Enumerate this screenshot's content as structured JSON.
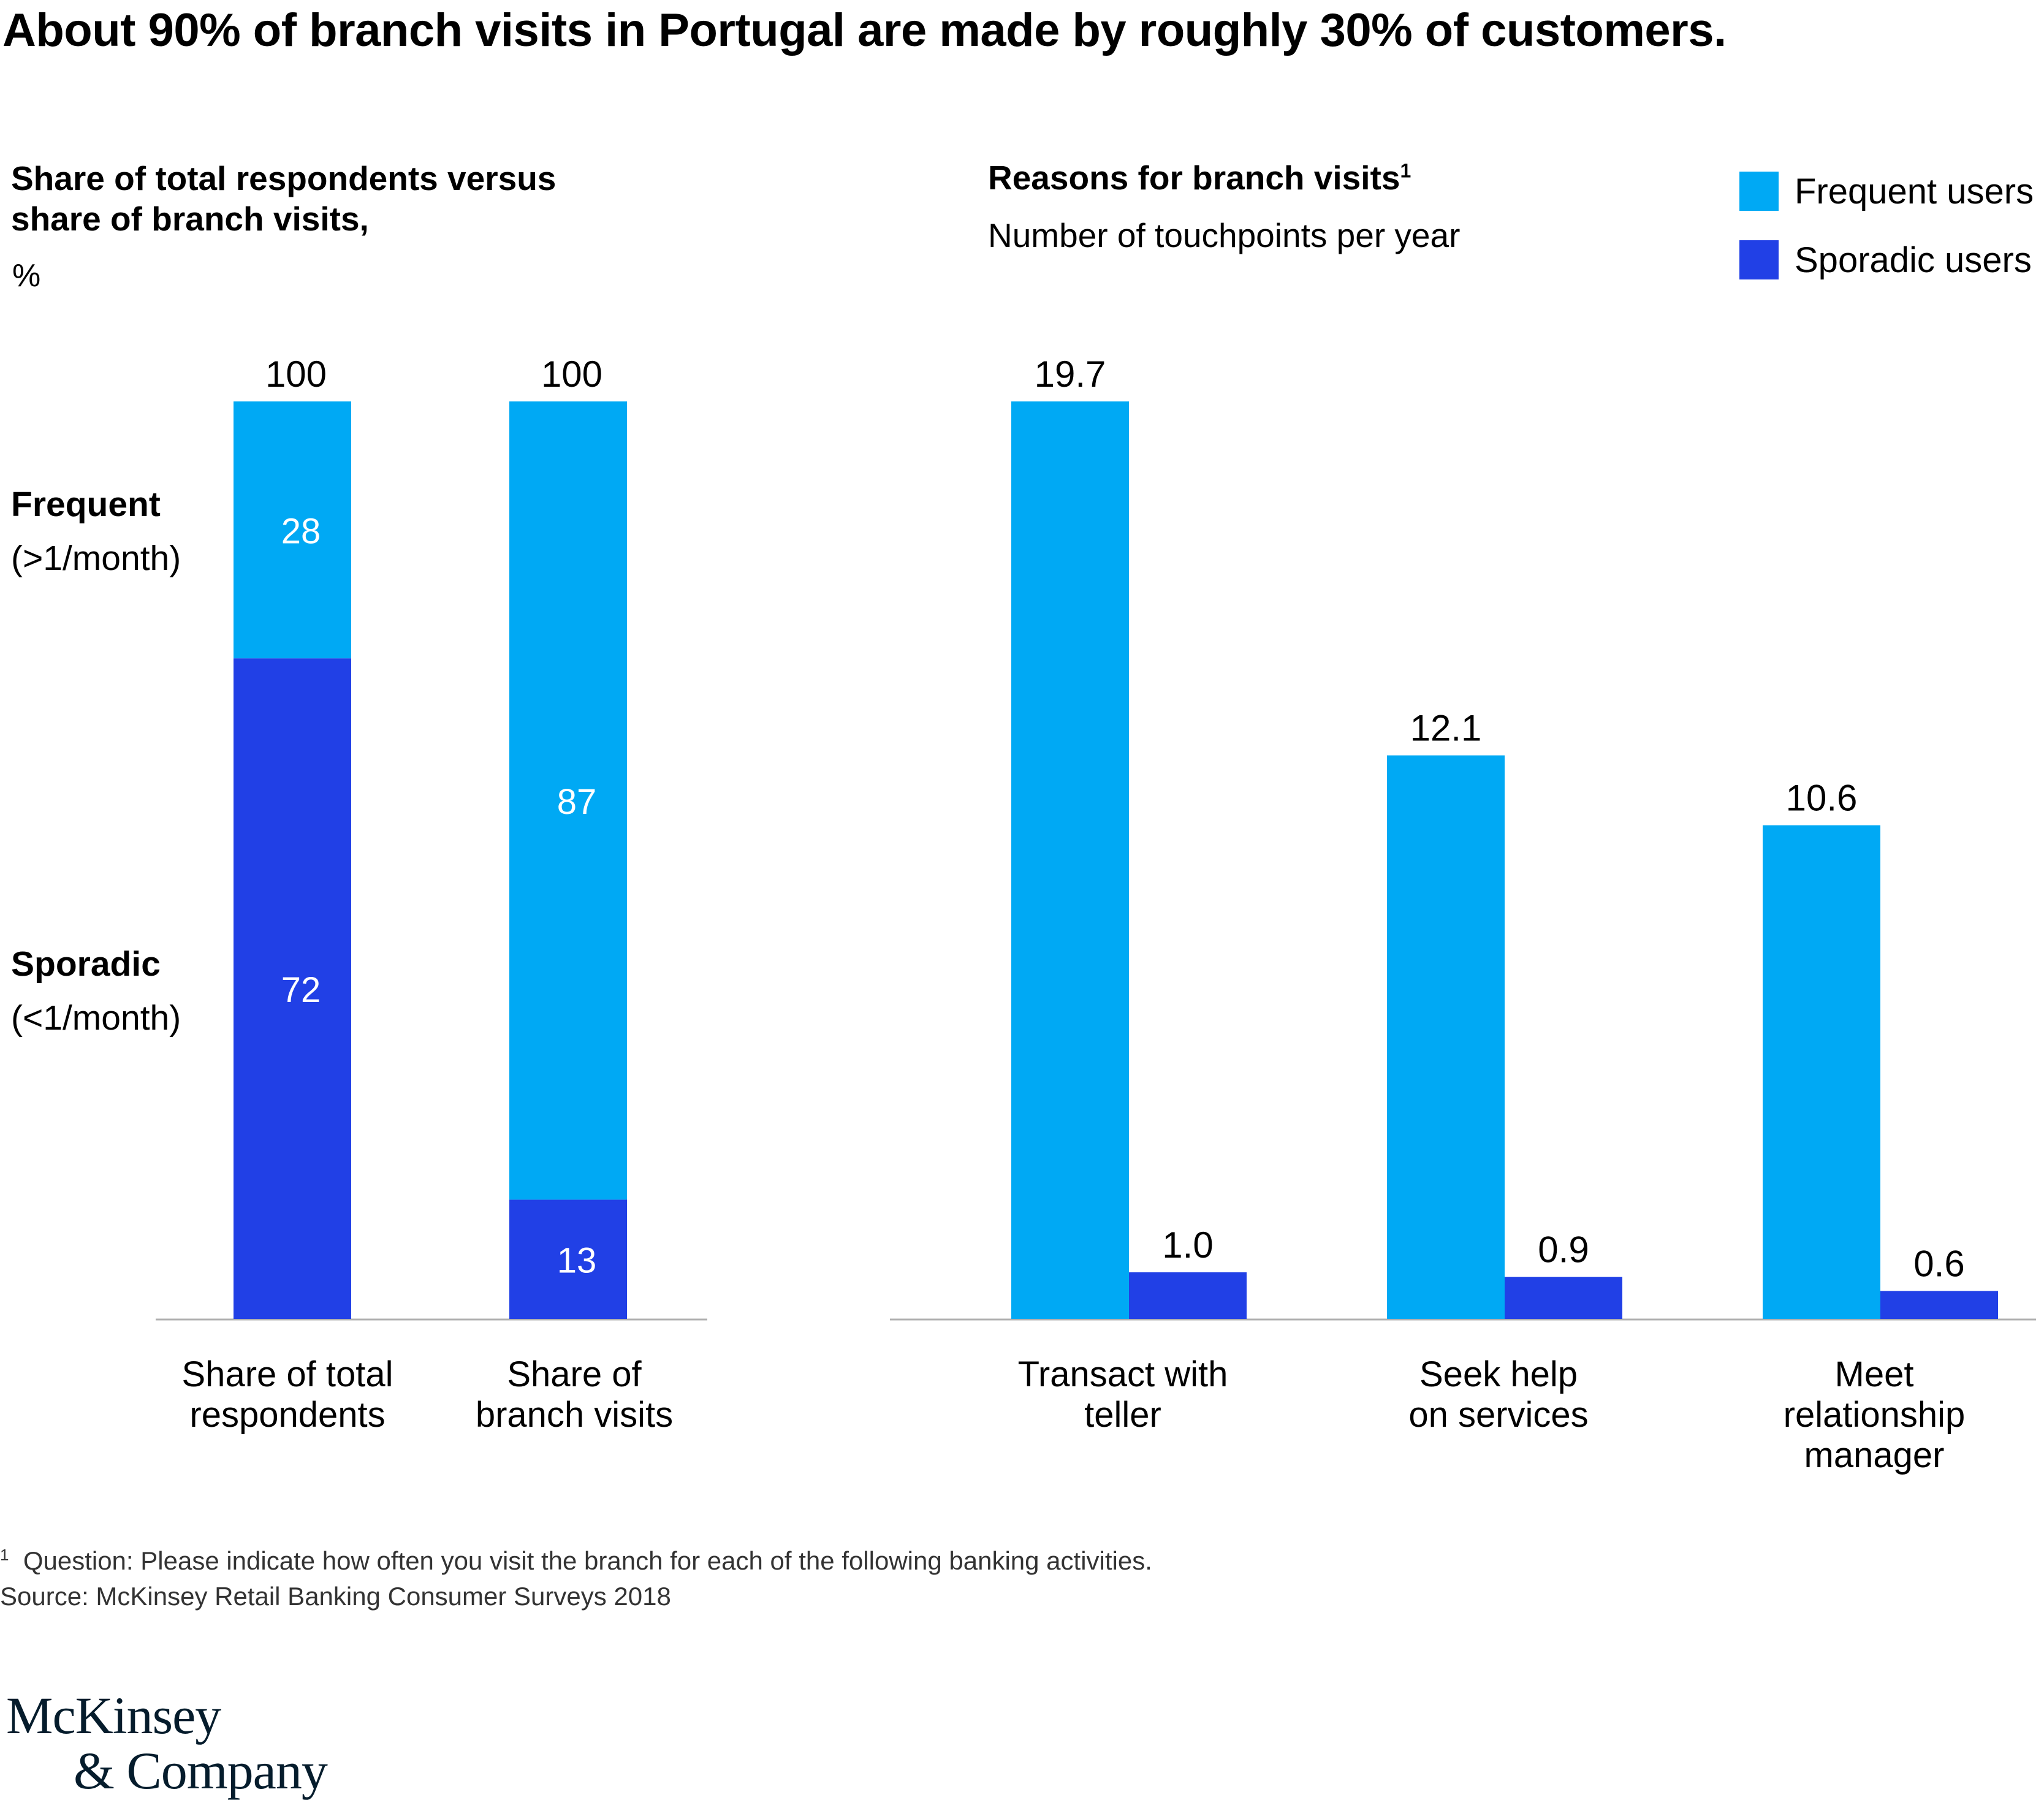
{
  "headline": "About 90% of branch visits in Portugal are made by roughly 30% of customers.",
  "colors": {
    "frequent": "#00a9f4",
    "sporadic": "#2140e6",
    "axis": "#b0b0b0"
  },
  "left_panel": {
    "subtitle_line1": "Share of total respondents versus",
    "subtitle_line2": "share of branch visits,",
    "unit": "%",
    "row_labels": {
      "frequent_title": "Frequent",
      "frequent_detail": "(>1/month)",
      "sporadic_title": "Sporadic",
      "sporadic_detail": "(<1/month)"
    }
  },
  "right_panel": {
    "subtitle": "Reasons for branch visits",
    "subtitle_sup": "1",
    "description": "Number of touchpoints per year"
  },
  "legend": [
    {
      "label": "Frequent users",
      "color": "#00a9f4"
    },
    {
      "label": "Sporadic users",
      "color": "#2140e6"
    }
  ],
  "chart_data": [
    {
      "type": "bar",
      "stacked": true,
      "categories": [
        [
          "Share of total",
          "respondents"
        ],
        [
          "Share of",
          "branch visits"
        ]
      ],
      "totals": [
        "100",
        "100"
      ],
      "series": [
        {
          "name": "Frequent",
          "values": [
            28,
            87
          ],
          "labels": [
            "28",
            "87"
          ],
          "color": "#00a9f4"
        },
        {
          "name": "Sporadic",
          "values": [
            72,
            13
          ],
          "labels": [
            "72",
            "13"
          ],
          "color": "#2140e6"
        }
      ],
      "ylim": [
        0,
        100
      ]
    },
    {
      "type": "bar",
      "grouped": true,
      "categories": [
        [
          "Transact with",
          "teller"
        ],
        [
          "Seek help",
          "on services"
        ],
        [
          "Meet",
          "relationship",
          "manager"
        ]
      ],
      "series": [
        {
          "name": "Frequent users",
          "values": [
            19.7,
            12.1,
            10.6
          ],
          "labels": [
            "19.7",
            "12.1",
            "10.6"
          ],
          "color": "#00a9f4"
        },
        {
          "name": "Sporadic users",
          "values": [
            1.0,
            0.9,
            0.6
          ],
          "labels": [
            "1.0",
            "0.9",
            "0.6"
          ],
          "color": "#2140e6"
        }
      ],
      "ylim": [
        0,
        19.7
      ]
    }
  ],
  "footnote": {
    "marker": "1",
    "question": "Question: Please indicate how often you visit the branch for each of the following banking activities.",
    "source": "Source: McKinsey Retail Banking Consumer Surveys 2018"
  },
  "logo": {
    "line1": "McKinsey",
    "line2": "& Company"
  }
}
